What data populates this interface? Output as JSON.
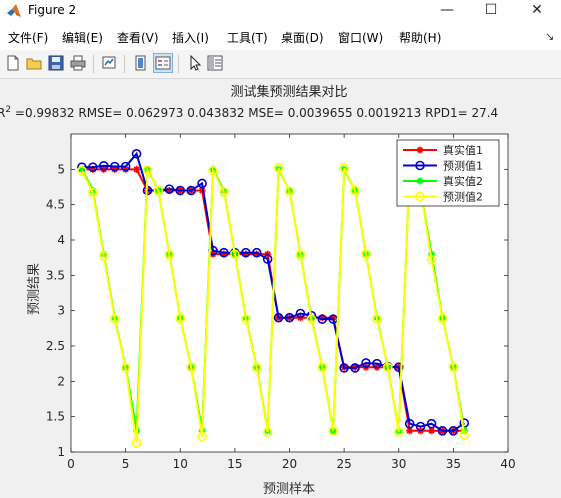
{
  "window": {
    "title": "Figure 2"
  },
  "menu": [
    "文件(F)",
    "编辑(E)",
    "查看(V)",
    "插入(I)",
    "工具(T)",
    "桌面(D)",
    "窗口(W)",
    "帮助(H)"
  ],
  "toolbar": {
    "buttons": [
      "new-figure",
      "open-file",
      "save-figure",
      "print-figure",
      "link-plot",
      "insert-colorbar",
      "insert-legend",
      "edit-plot",
      "plot-browser"
    ]
  },
  "colors": {
    "series1_true": "#ff0000",
    "series1_pred": "#0000cc",
    "series2_true": "#00ff00",
    "series2_pred": "#ffff00"
  },
  "chart_data": {
    "type": "line",
    "title": "测试集预测结果对比",
    "subtitle_prefix": "R",
    "subtitle_sup": "2",
    "subtitle_rest": " =0.99832 RMSE= 0.062973    0.043832 MSE= 0.0039655   0.0019213 RPD1= 27.4",
    "xlabel": "预测样本",
    "ylabel": "预测结果",
    "xlim": [
      0,
      40
    ],
    "ylim": [
      1,
      5.5
    ],
    "xticks": [
      0,
      5,
      10,
      15,
      20,
      25,
      30,
      35,
      40
    ],
    "yticks": [
      1,
      1.5,
      2,
      2.5,
      3,
      3.5,
      4,
      4.5,
      5
    ],
    "grid": false,
    "legend_position": "top-right",
    "x": [
      1,
      2,
      3,
      4,
      5,
      6,
      7,
      8,
      9,
      10,
      11,
      12,
      13,
      14,
      15,
      16,
      17,
      18,
      19,
      20,
      21,
      22,
      23,
      24,
      25,
      26,
      27,
      28,
      29,
      30,
      31,
      32,
      33,
      34,
      35,
      36
    ],
    "series": [
      {
        "name": "真实值1",
        "marker": "asterisk",
        "values": [
          5.0,
          5.0,
          5.0,
          5.0,
          5.0,
          5.0,
          4.7,
          4.7,
          4.7,
          4.7,
          4.7,
          4.7,
          3.8,
          3.8,
          3.8,
          3.8,
          3.8,
          3.8,
          2.9,
          2.9,
          2.9,
          2.9,
          2.9,
          2.9,
          2.2,
          2.2,
          2.2,
          2.2,
          2.2,
          2.2,
          1.3,
          1.3,
          1.3,
          1.3,
          1.3,
          1.3
        ]
      },
      {
        "name": "预测值1",
        "marker": "circle",
        "values": [
          5.03,
          5.03,
          5.05,
          5.04,
          5.04,
          5.22,
          4.7,
          4.7,
          4.72,
          4.7,
          4.7,
          4.8,
          3.85,
          3.82,
          3.82,
          3.82,
          3.82,
          3.73,
          2.9,
          2.9,
          2.96,
          2.93,
          2.88,
          2.88,
          2.19,
          2.19,
          2.26,
          2.25,
          2.21,
          2.2,
          1.4,
          1.36,
          1.4,
          1.3,
          1.3,
          1.41
        ]
      },
      {
        "name": "真实值2",
        "marker": "asterisk",
        "values": [
          5.0,
          4.7,
          3.8,
          2.9,
          2.2,
          1.3,
          5.0,
          4.7,
          3.8,
          2.9,
          2.2,
          1.3,
          5.0,
          4.7,
          3.8,
          2.9,
          2.2,
          1.3,
          5.0,
          4.7,
          3.8,
          2.9,
          2.2,
          1.3,
          5.0,
          4.7,
          3.8,
          2.9,
          2.2,
          1.3,
          5.0,
          4.7,
          3.8,
          2.9,
          2.2,
          1.3
        ]
      },
      {
        "name": "预测值2",
        "marker": "circle",
        "values": [
          4.98,
          4.67,
          3.77,
          2.88,
          2.19,
          1.13,
          4.99,
          4.7,
          3.79,
          2.89,
          2.2,
          1.22,
          4.98,
          4.68,
          3.8,
          2.88,
          2.19,
          1.28,
          5.02,
          4.69,
          3.79,
          2.88,
          2.2,
          1.3,
          5.02,
          4.7,
          3.8,
          2.88,
          2.2,
          1.28,
          5.0,
          4.7,
          3.72,
          2.89,
          2.2,
          1.24
        ]
      }
    ]
  }
}
